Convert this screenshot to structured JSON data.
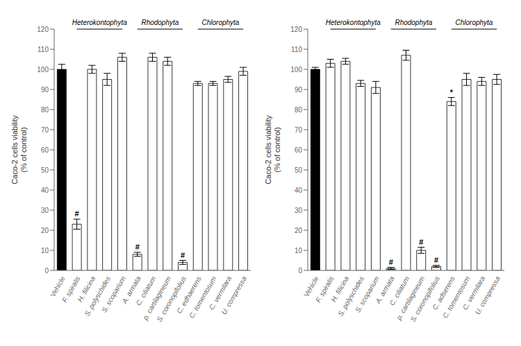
{
  "chart_data": [
    {
      "type": "bar",
      "categories": [
        "Vehicle",
        "F. spiralis",
        "H. filicina",
        "S. polyschides",
        "S. scoparium",
        "A. armata",
        "C. ciliatum",
        "p. cartilagineum",
        "S. coronopifolius",
        "C. edhaerens",
        "C. tomentosum",
        "C. vermilara",
        "U. compressa"
      ],
      "values": [
        100,
        23,
        100,
        95,
        106,
        8,
        106,
        104,
        4,
        93,
        93,
        95,
        99
      ],
      "errors": [
        2.5,
        2.5,
        2,
        3,
        2,
        1,
        2,
        2,
        1,
        1,
        1,
        1.5,
        2
      ],
      "colors": [
        "black",
        "white",
        "white",
        "white",
        "white",
        "white",
        "white",
        "white",
        "white",
        "white",
        "white",
        "white",
        "white"
      ],
      "annotations": [
        {
          "category": "F. spiralis",
          "text": "#"
        },
        {
          "category": "A. armata",
          "text": "#"
        },
        {
          "category": "S. coronopifolius",
          "text": "#"
        }
      ],
      "groups": [
        {
          "label": "Heterokontophyta",
          "from": "F. spiralis",
          "to": "S. scoparium"
        },
        {
          "label": "Rhodophyta",
          "from": "A. armata",
          "to": "S. coronopifolius"
        },
        {
          "label": "Chlorophyta",
          "from": "C. edhaerens",
          "to": "U. compressa"
        }
      ],
      "ylabel": "Caco-2 cells viability\n(% of control)",
      "ylim": [
        0,
        120
      ],
      "yticks": [
        0,
        10,
        20,
        30,
        40,
        50,
        60,
        70,
        80,
        90,
        100,
        110,
        120
      ],
      "grid": false
    },
    {
      "type": "bar",
      "categories": [
        "Vehicle",
        "F. spiralis",
        "H. filicina",
        "S. polyschides",
        "S. scoparium",
        "A. armata",
        "C. ciliatum",
        "p. cartilagineum",
        "S. coronopifolius",
        "C. adserens",
        "C. tomentosum",
        "C. vermilara",
        "U. compressa"
      ],
      "values": [
        100,
        103,
        104,
        93,
        91,
        1,
        107,
        10,
        2,
        84,
        95,
        94,
        95
      ],
      "errors": [
        1,
        2,
        1.5,
        1.5,
        3,
        0.5,
        2.5,
        1.5,
        0.5,
        2,
        3,
        2,
        2.5
      ],
      "colors": [
        "black",
        "white",
        "white",
        "white",
        "white",
        "white",
        "white",
        "white",
        "white",
        "white",
        "white",
        "white",
        "white"
      ],
      "annotations": [
        {
          "category": "A. armata",
          "text": "#"
        },
        {
          "category": "p. cartilagineum",
          "text": "#"
        },
        {
          "category": "S. coronopifolius",
          "text": "#"
        },
        {
          "category": "C. adserens",
          "text": "*"
        }
      ],
      "groups": [
        {
          "label": "Heterokontophyta",
          "from": "F. spiralis",
          "to": "S. scoparium"
        },
        {
          "label": "Rhodophyta",
          "from": "A. armata",
          "to": "S. coronopifolius"
        },
        {
          "label": "Chlorophyta",
          "from": "C. adserens",
          "to": "U. compressa"
        }
      ],
      "ylabel": "Caco-2 cells viability\n(% of control)",
      "ylim": [
        0,
        120
      ],
      "yticks": [
        0,
        10,
        20,
        30,
        40,
        50,
        60,
        70,
        80,
        90,
        100,
        110,
        120
      ],
      "grid": false
    }
  ]
}
